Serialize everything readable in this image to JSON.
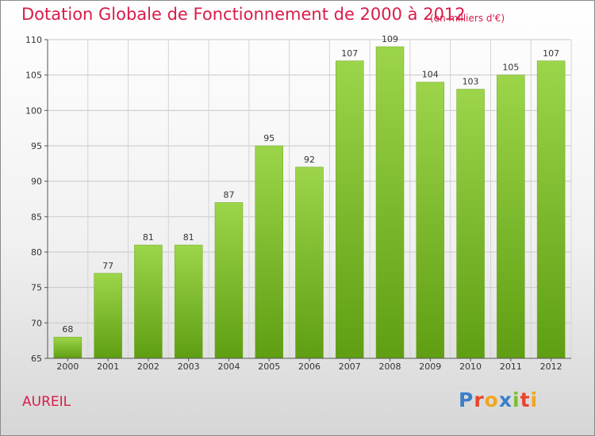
{
  "header": {
    "title": "Dotation Globale de Fonctionnement de 2000 à 2012",
    "unit": "(en milliers d'€)"
  },
  "commune": "AUREIL",
  "logo": {
    "text": "Proxiti",
    "letter_colors": [
      "#3a7fc8",
      "#e8452c",
      "#f2a51f",
      "#3a7fc8",
      "#7bbf2a",
      "#e8452c",
      "#f2a51f"
    ]
  },
  "chart_data": {
    "type": "bar",
    "categories": [
      "2000",
      "2001",
      "2002",
      "2003",
      "2004",
      "2005",
      "2006",
      "2007",
      "2008",
      "2009",
      "2010",
      "2011",
      "2012"
    ],
    "values": [
      68,
      77,
      81,
      81,
      87,
      95,
      92,
      107,
      109,
      104,
      103,
      105,
      107
    ],
    "title": "Dotation Globale de Fonctionnement de 2000 à 2012",
    "ylabel": "",
    "xlabel": "",
    "ylim": [
      65,
      110
    ],
    "yticks": [
      65,
      70,
      75,
      80,
      85,
      90,
      95,
      100,
      105,
      110
    ],
    "grid": true,
    "bar_color_top": "#9cd54a",
    "bar_color_bottom": "#5f9e12"
  }
}
